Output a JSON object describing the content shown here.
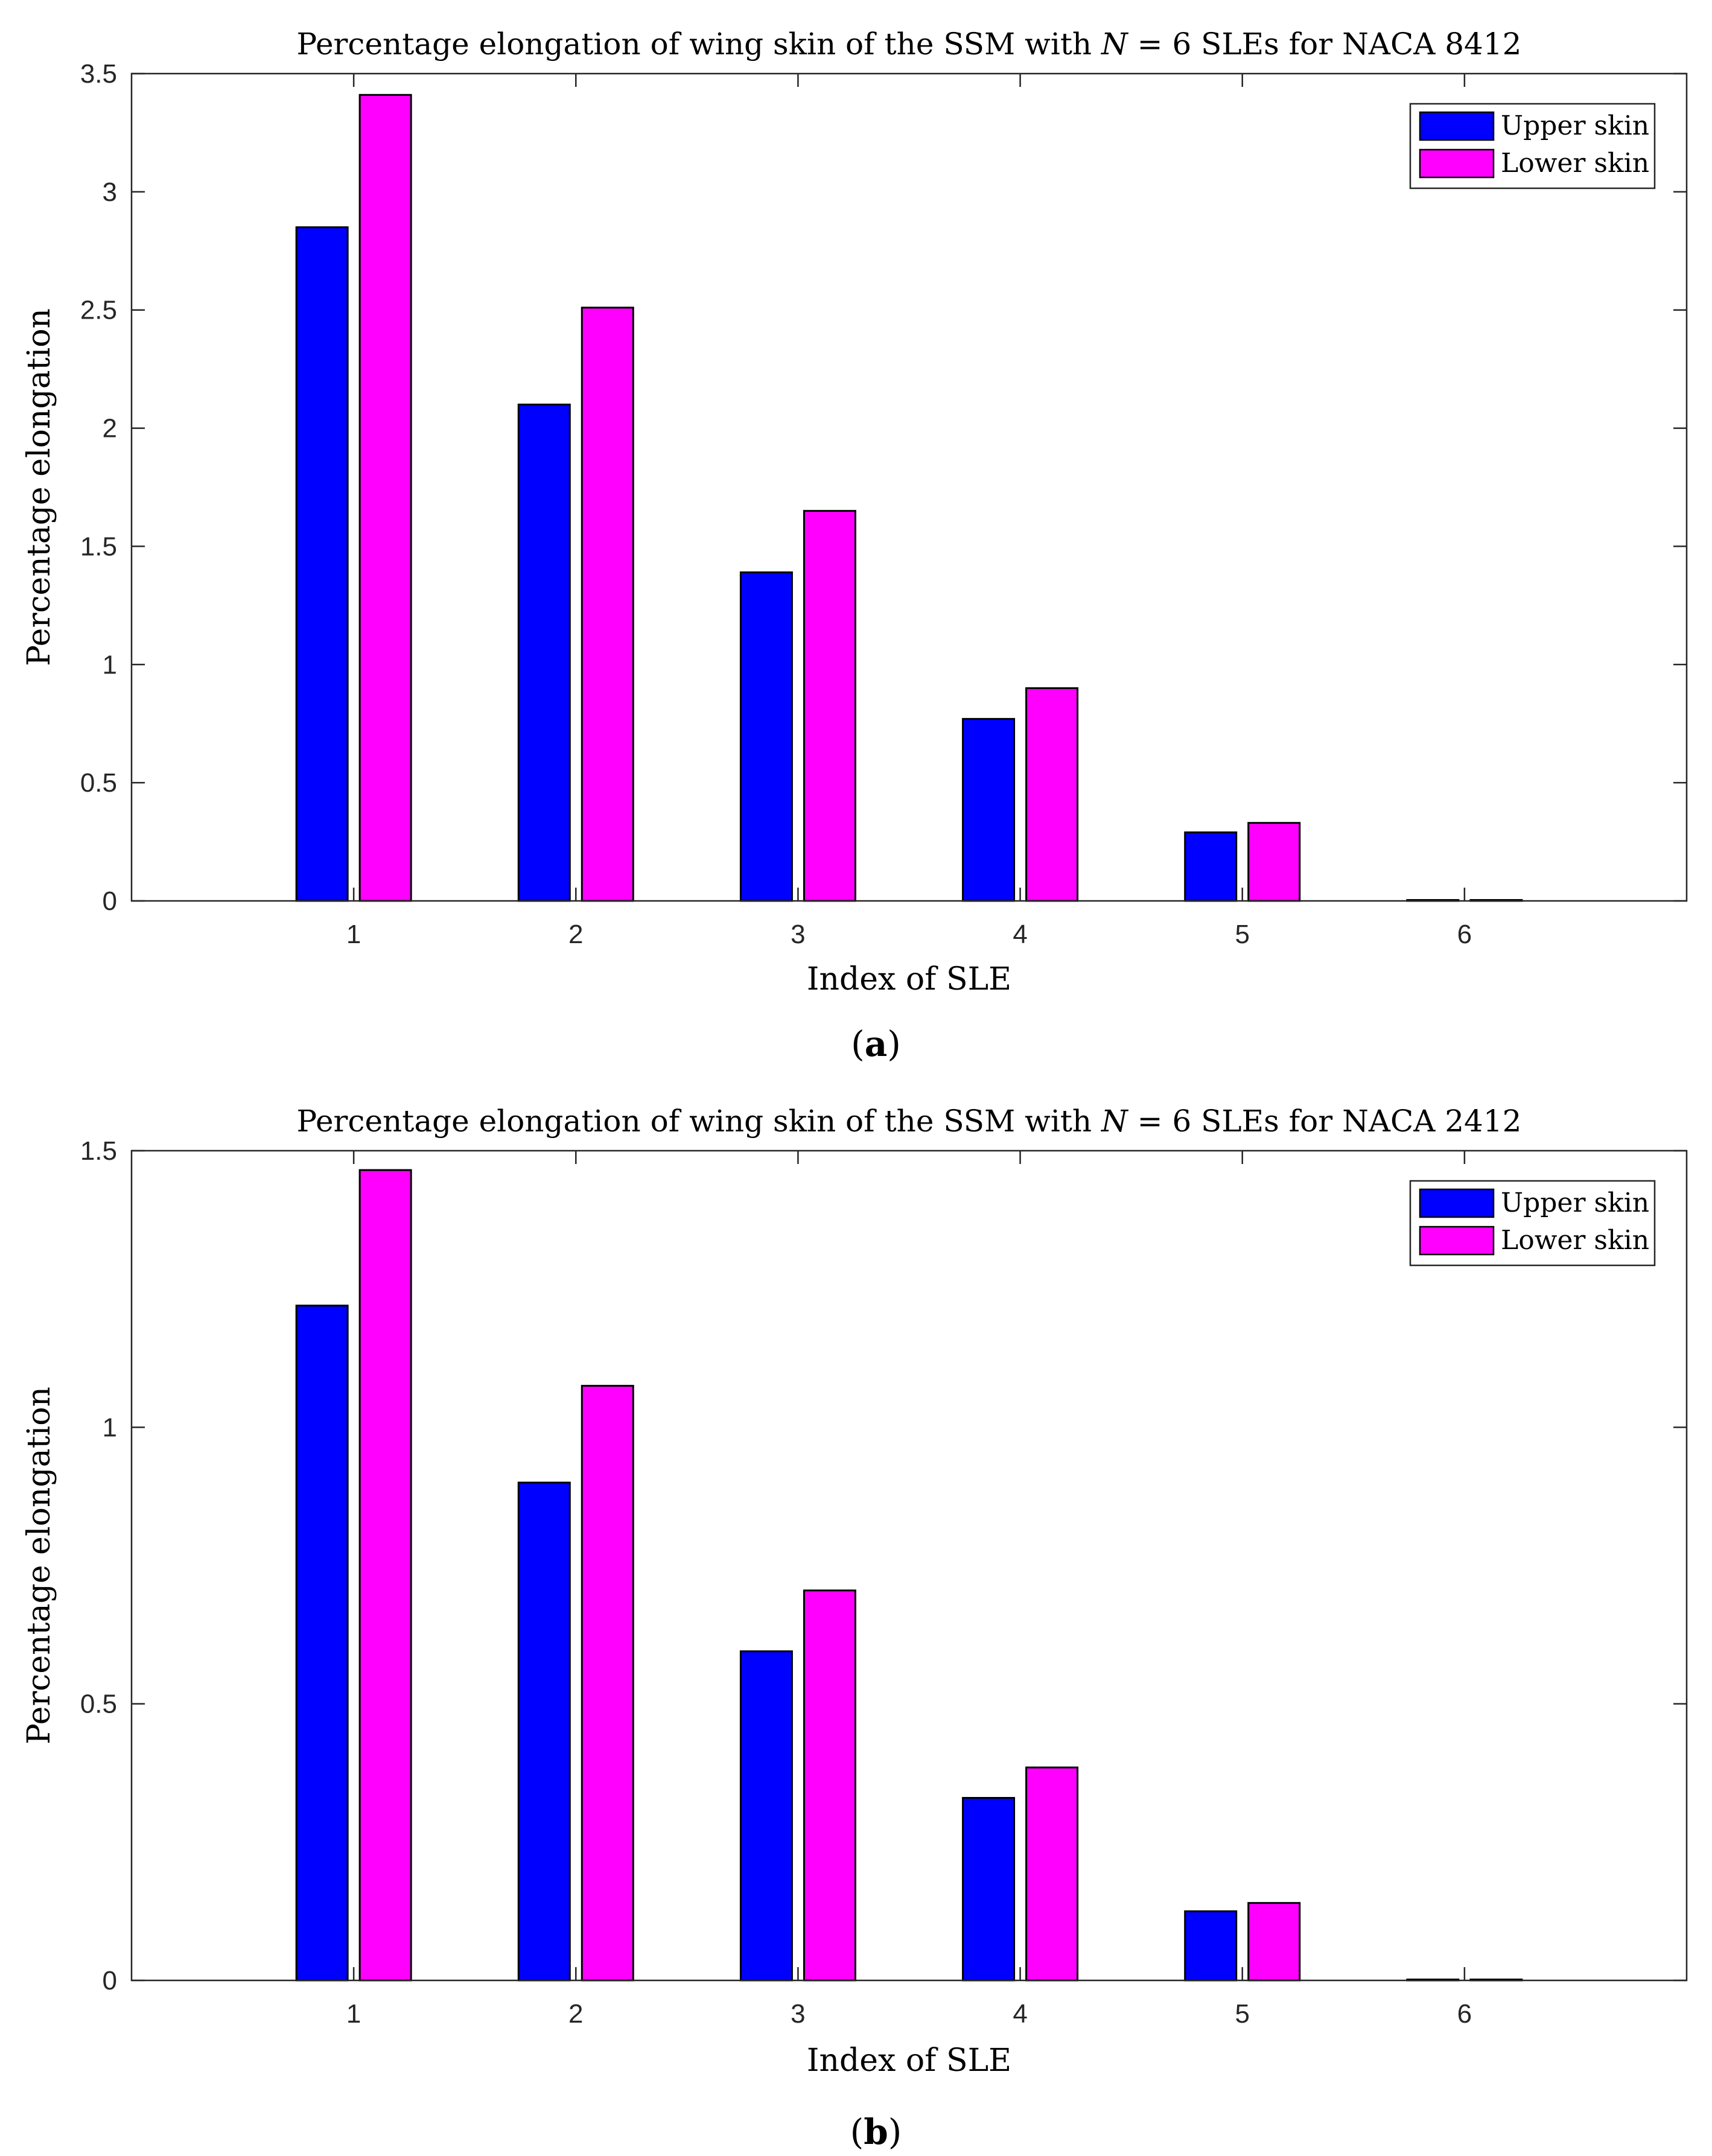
{
  "chart_data": [
    {
      "type": "bar",
      "title": "Percentage elongation of wing skin of the SSM with N = 6 SLEs for NACA 8412",
      "title_parts": {
        "prefix": "Percentage elongation of wing skin of the SSM with ",
        "var": "N",
        "suffix": " = 6 SLEs for NACA 8412"
      },
      "xlabel": "Index of SLE",
      "ylabel": "Percentage elongation",
      "caption": {
        "open": "(",
        "letter": "a",
        "close": ")"
      },
      "categories": [
        "1",
        "2",
        "3",
        "4",
        "5",
        "6"
      ],
      "xlim": [
        0,
        7
      ],
      "ylim": [
        0,
        3.5
      ],
      "yticks": [
        0,
        0.5,
        1,
        1.5,
        2,
        2.5,
        3,
        3.5
      ],
      "ytick_labels": [
        "0",
        "0.5",
        "1",
        "1.5",
        "2",
        "2.5",
        "3",
        "3.5"
      ],
      "legend_position": "top-right",
      "series": [
        {
          "name": "Upper skin",
          "color": "#0000FF",
          "values": [
            2.85,
            2.1,
            1.39,
            0.77,
            0.29,
            0.0
          ]
        },
        {
          "name": "Lower skin",
          "color": "#FF00FF",
          "values": [
            3.41,
            2.51,
            1.65,
            0.9,
            0.33,
            0.0
          ]
        }
      ]
    },
    {
      "type": "bar",
      "title": "Percentage elongation of wing skin of the SSM with N = 6 SLEs for NACA 2412",
      "title_parts": {
        "prefix": "Percentage elongation of wing skin of the SSM with ",
        "var": "N",
        "suffix": " = 6 SLEs for NACA 2412"
      },
      "xlabel": "Index of SLE",
      "ylabel": "Percentage elongation",
      "caption": {
        "open": "(",
        "letter": "b",
        "close": ")"
      },
      "categories": [
        "1",
        "2",
        "3",
        "4",
        "5",
        "6"
      ],
      "xlim": [
        0,
        7
      ],
      "ylim": [
        0,
        1.5
      ],
      "yticks": [
        0,
        0.5,
        1,
        1.5
      ],
      "ytick_labels": [
        "0",
        "0.5",
        "1",
        "1.5"
      ],
      "legend_position": "top-right",
      "series": [
        {
          "name": "Upper skin",
          "color": "#0000FF",
          "values": [
            1.22,
            0.9,
            0.595,
            0.33,
            0.125,
            0.0
          ]
        },
        {
          "name": "Lower skin",
          "color": "#FF00FF",
          "values": [
            1.465,
            1.075,
            0.705,
            0.385,
            0.14,
            0.0
          ]
        }
      ]
    }
  ]
}
